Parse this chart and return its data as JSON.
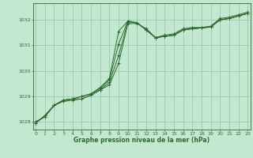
{
  "x": [
    0,
    1,
    2,
    3,
    4,
    5,
    6,
    7,
    8,
    9,
    10,
    11,
    12,
    13,
    14,
    15,
    16,
    17,
    18,
    19,
    20,
    21,
    22,
    23
  ],
  "series": [
    [
      1028.0,
      1028.2,
      1028.65,
      1028.85,
      1028.9,
      1028.9,
      1029.05,
      1029.25,
      1029.45,
      1030.3,
      1031.85,
      1031.85,
      1031.65,
      1031.3,
      1031.4,
      1031.45,
      1031.65,
      1031.7,
      1031.7,
      1031.75,
      1032.05,
      1032.1,
      1032.2,
      1032.3
    ],
    [
      1028.0,
      1028.2,
      1028.65,
      1028.8,
      1028.85,
      1028.9,
      1029.05,
      1029.25,
      1029.55,
      1030.6,
      1031.92,
      1031.88,
      1031.6,
      1031.3,
      1031.35,
      1031.4,
      1031.6,
      1031.65,
      1031.68,
      1031.72,
      1032.0,
      1032.05,
      1032.15,
      1032.25
    ],
    [
      1027.95,
      1028.25,
      1028.65,
      1028.85,
      1028.9,
      1029.0,
      1029.1,
      1029.3,
      1029.65,
      1031.05,
      1031.95,
      1031.88,
      1031.6,
      1031.3,
      1031.35,
      1031.4,
      1031.6,
      1031.65,
      1031.68,
      1031.72,
      1032.0,
      1032.05,
      1032.15,
      1032.25
    ],
    [
      1027.95,
      1028.25,
      1028.65,
      1028.85,
      1028.9,
      1029.0,
      1029.1,
      1029.35,
      1029.7,
      1031.55,
      1031.95,
      1031.88,
      1031.6,
      1031.3,
      1031.35,
      1031.4,
      1031.6,
      1031.65,
      1031.68,
      1031.72,
      1032.0,
      1032.05,
      1032.15,
      1032.25
    ]
  ],
  "line_color": "#2d6a2d",
  "marker_color": "#2d6a2d",
  "bg_color": "#c2e8d0",
  "grid_color": "#9abfaa",
  "text_color": "#2d6a2d",
  "xlabel": "Graphe pression niveau de la mer (hPa)",
  "ylim": [
    1027.7,
    1032.65
  ],
  "yticks": [
    1028,
    1029,
    1030,
    1031,
    1032
  ],
  "xticks": [
    0,
    1,
    2,
    3,
    4,
    5,
    6,
    7,
    8,
    9,
    10,
    11,
    12,
    13,
    14,
    15,
    16,
    17,
    18,
    19,
    20,
    21,
    22,
    23
  ],
  "figsize": [
    3.2,
    2.0
  ],
  "dpi": 100
}
